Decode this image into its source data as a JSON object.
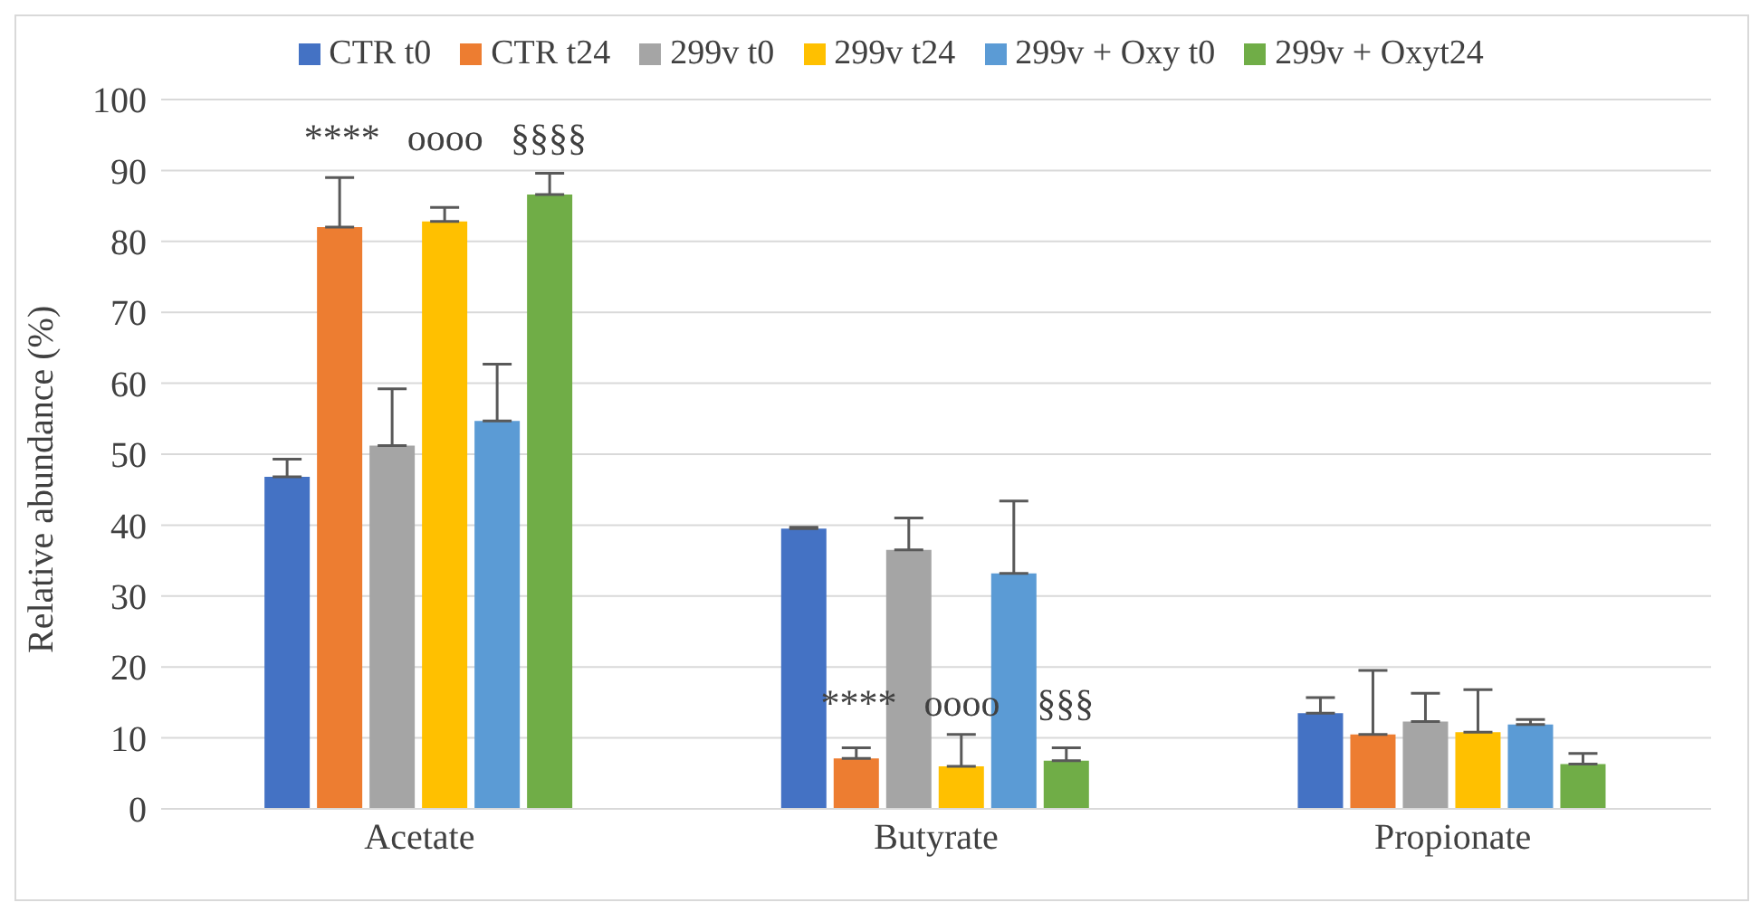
{
  "chart_data": {
    "type": "bar",
    "ylabel": "Relative abundance (%)",
    "categories": [
      "Acetate",
      "Butyrate",
      "Propionate"
    ],
    "series": [
      {
        "name": "CTR t0",
        "color": "#4472c4",
        "values": [
          46.8,
          39.5,
          13.5
        ],
        "errors": [
          [
            46.8,
            49.3
          ],
          [
            39.5,
            39.7
          ],
          [
            13.5,
            15.7
          ]
        ]
      },
      {
        "name": "CTR t24",
        "color": "#ed7d31",
        "values": [
          82,
          7.1,
          10.5
        ],
        "errors": [
          [
            82,
            89
          ],
          [
            7.1,
            8.6
          ],
          [
            10.5,
            19.5
          ]
        ]
      },
      {
        "name": "299v t0",
        "color": "#a5a5a5",
        "values": [
          51.2,
          36.5,
          12.3
        ],
        "errors": [
          [
            51.2,
            59.2
          ],
          [
            36.5,
            41
          ],
          [
            12.3,
            16.3
          ]
        ]
      },
      {
        "name": "299v t24",
        "color": "#ffc000",
        "values": [
          82.8,
          6,
          10.8
        ],
        "errors": [
          [
            82.8,
            84.8
          ],
          [
            6,
            10.5
          ],
          [
            10.8,
            16.8
          ]
        ]
      },
      {
        "name": "299v + Oxy t0",
        "color": "#5b9bd5",
        "values": [
          54.7,
          33.2,
          11.9
        ],
        "errors": [
          [
            54.7,
            62.7
          ],
          [
            33.2,
            43.4
          ],
          [
            11.9,
            12.6
          ]
        ]
      },
      {
        "name": "299v + Oxyt24",
        "color": "#70ad47",
        "values": [
          86.6,
          6.8,
          6.3
        ],
        "errors": [
          [
            86.6,
            89.6
          ],
          [
            6.8,
            8.6
          ],
          [
            6.3,
            7.8
          ]
        ]
      }
    ],
    "annotations": [
      "****",
      "oooo",
      "§§§§",
      {
        "text": "****",
        "x": "Butyrate",
        "y": 15
      },
      {
        "text": "oooo",
        "x": "Butyrate",
        "y": 15
      },
      {
        "text": "§§§",
        "x": "Butyrate",
        "y": 15
      }
    ],
    "ylim": [
      0,
      100
    ],
    "yticks": [
      0,
      10,
      20,
      30,
      40,
      50,
      60,
      70,
      80,
      90,
      100
    ],
    "grid": "y",
    "legend": "top"
  }
}
